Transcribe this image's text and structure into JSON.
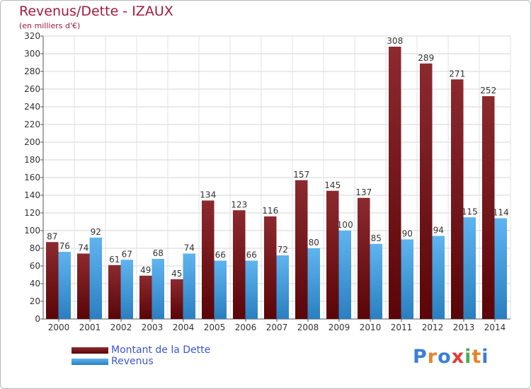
{
  "chart_data": {
    "type": "bar",
    "title": "Revenus/Dette - IZAUX",
    "subtitle": "(en milliers d'€)",
    "categories": [
      "2000",
      "2001",
      "2002",
      "2003",
      "2004",
      "2005",
      "2006",
      "2007",
      "2008",
      "2009",
      "2010",
      "2011",
      "2012",
      "2013",
      "2014"
    ],
    "series": [
      {
        "name": "Montant de la Dette",
        "color": "#7a1a1f",
        "values": [
          87,
          74,
          61,
          49,
          45,
          134,
          123,
          116,
          157,
          145,
          137,
          308,
          289,
          271,
          252
        ]
      },
      {
        "name": "Revenus",
        "color": "#4aa2e6",
        "values": [
          76,
          92,
          67,
          68,
          74,
          66,
          66,
          72,
          80,
          100,
          85,
          90,
          94,
          115,
          114
        ]
      }
    ],
    "ylim": [
      0,
      320
    ],
    "yticks": [
      0,
      20,
      40,
      60,
      80,
      100,
      120,
      140,
      160,
      180,
      200,
      220,
      240,
      260,
      280,
      300,
      320
    ],
    "grid": true,
    "legend_position": "bottom-left"
  },
  "logo": {
    "text": "Proxiti",
    "letter_colors": [
      "#3b7fd6",
      "#e8832a",
      "#3b7fd6",
      "#e23a3a",
      "#4caf50",
      "#e8832a",
      "#3b7fd6"
    ]
  }
}
